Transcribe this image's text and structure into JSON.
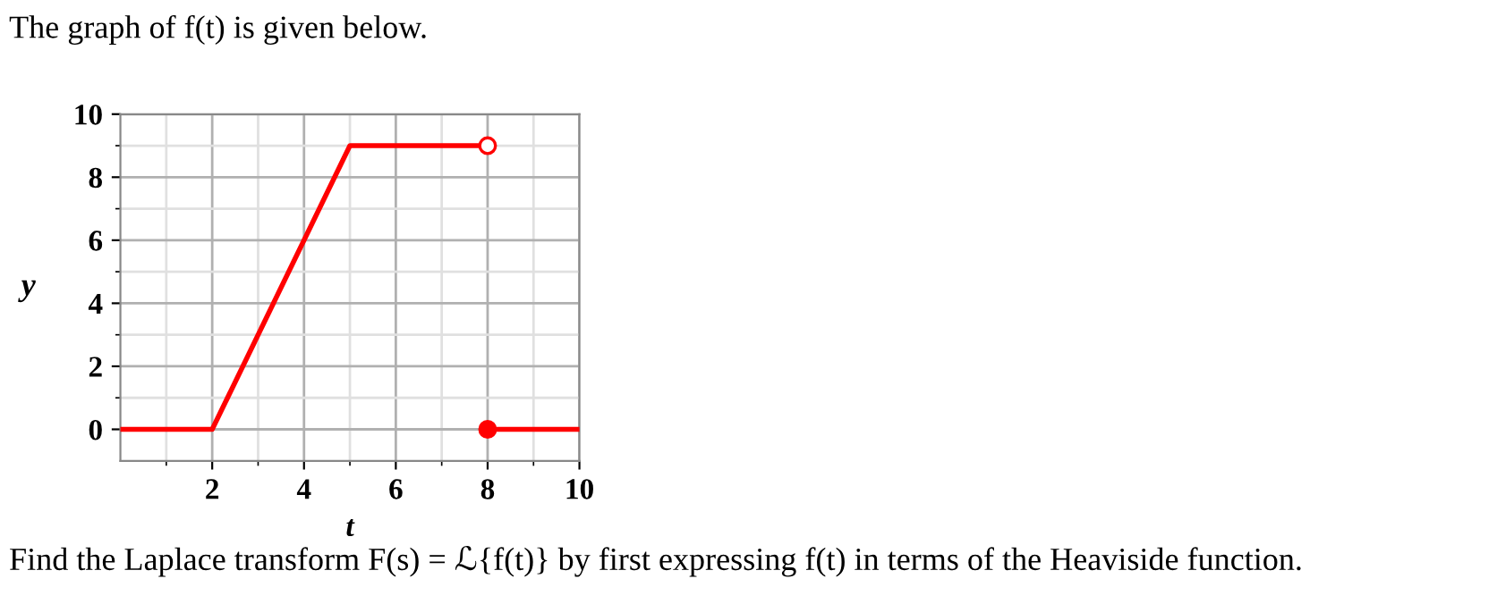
{
  "chart_data": {
    "type": "line",
    "title": "The graph of f(t) is given below.",
    "xlabel": "t",
    "ylabel": "y",
    "xlim": [
      0,
      10
    ],
    "ylim": [
      -1,
      10
    ],
    "xticks": [
      2,
      4,
      6,
      8,
      10
    ],
    "yticks": [
      0,
      2,
      4,
      6,
      8,
      10
    ],
    "grid": true,
    "series": [
      {
        "color": "#ff0000",
        "x": [
          0,
          2,
          5,
          8
        ],
        "values": [
          0,
          0,
          9,
          9
        ]
      },
      {
        "color": "#ff0000",
        "x": [
          8,
          10
        ],
        "values": [
          0,
          0
        ]
      },
      {
        "type": "scatter",
        "color": "#ff0000",
        "colors": [
          "#ffffff"
        ],
        "x": [
          8
        ],
        "values": [
          9
        ],
        "marker": "circle"
      },
      {
        "type": "scatter",
        "color": "#ff0000",
        "x": [
          8
        ],
        "values": [
          0
        ],
        "marker": "circle"
      }
    ],
    "annotations": [
      "Find the Laplace transform F(s) = ℒ{f(t)} by first expressing f(t) in terms of the Heaviside function."
    ]
  }
}
